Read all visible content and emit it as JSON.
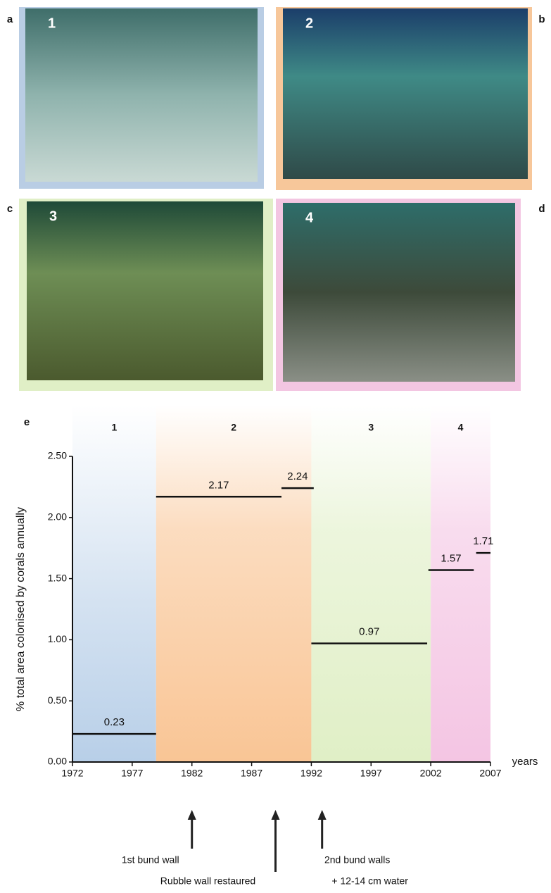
{
  "panels": [
    {
      "letter": "a",
      "number": "1",
      "frame": "#b9cde4"
    },
    {
      "letter": "b",
      "number": "2",
      "frame": "#f7c79a"
    },
    {
      "letter": "c",
      "number": "3",
      "frame": "#e0efc6"
    },
    {
      "letter": "d",
      "number": "4",
      "frame": "#f3c6e2"
    }
  ],
  "chart_data": {
    "type": "step",
    "panel_letter": "e",
    "y_label": "% total area colonised by corals annually",
    "x_label": "years",
    "xlim": [
      1972,
      2007
    ],
    "xticks": [
      1972,
      1977,
      1982,
      1987,
      1992,
      1997,
      2002,
      2007
    ],
    "ylim": [
      0,
      2.5
    ],
    "yticks": [
      {
        "value": 0,
        "label": "0.00"
      },
      {
        "value": 0.5,
        "label": "0.50"
      },
      {
        "value": 1,
        "label": "1.00"
      },
      {
        "value": 1.5,
        "label": "1.50"
      },
      {
        "value": 2,
        "label": "2.00"
      },
      {
        "value": 2.5,
        "label": "2.50"
      }
    ],
    "phases": [
      {
        "label": "1",
        "start": 1972,
        "end": 1979,
        "color": "#b8cfe8"
      },
      {
        "label": "2",
        "start": 1979,
        "end": 1992,
        "color": "#f9c595"
      },
      {
        "label": "3",
        "start": 1992,
        "end": 2002,
        "color": "#e0efc6"
      },
      {
        "label": "4",
        "start": 2002,
        "end": 2007,
        "color": "#f4c5e3"
      }
    ],
    "series": [
      {
        "color": "#111111",
        "x_start": [
          1972,
          1979,
          1989.5,
          1992,
          2001.8,
          2005.8
        ],
        "x_end": [
          1979,
          1989.5,
          1992.2,
          2001.7,
          2005.6,
          2007
        ],
        "values": [
          0.23,
          2.17,
          2.24,
          0.97,
          1.57,
          1.71
        ]
      }
    ],
    "annotations": [
      {
        "x": 1982,
        "lines": [
          "1st bund wall"
        ]
      },
      {
        "x": 1989,
        "lines": [
          "Rubble wall restaured"
        ]
      },
      {
        "x": 1992.9,
        "lines": [
          "2nd bund walls",
          "+ 12-14 cm water"
        ]
      }
    ]
  }
}
